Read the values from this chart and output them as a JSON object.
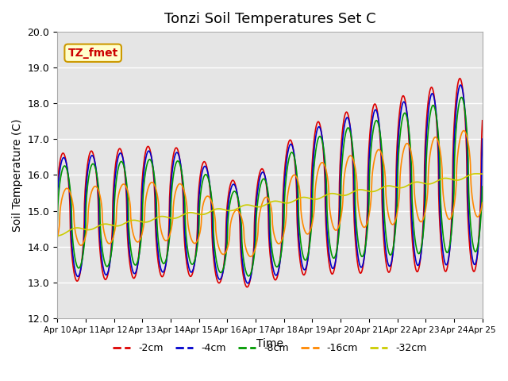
{
  "title": "Tonzi Soil Temperatures Set C",
  "xlabel": "Time",
  "ylabel": "Soil Temperature (C)",
  "ylim": [
    12.0,
    20.0
  ],
  "yticks": [
    12.0,
    13.0,
    14.0,
    15.0,
    16.0,
    17.0,
    18.0,
    19.0,
    20.0
  ],
  "xtick_labels": [
    "Apr 10",
    "Apr 11",
    "Apr 12",
    "Apr 13",
    "Apr 14",
    "Apr 15",
    "Apr 16",
    "Apr 17",
    "Apr 18",
    "Apr 19",
    "Apr 20",
    "Apr 21",
    "Apr 22",
    "Apr 23",
    "Apr 24",
    "Apr 25"
  ],
  "legend_labels": [
    "-2cm",
    "-4cm",
    "-8cm",
    "-16cm",
    "-32cm"
  ],
  "colors": [
    "#dd0000",
    "#0000cc",
    "#009900",
    "#ff8800",
    "#cccc00"
  ],
  "annotation_text": "TZ_fmet",
  "annotation_color": "#cc0000",
  "annotation_bg": "#ffffcc",
  "annotation_border": "#cc9900",
  "plot_bg_color": "#e5e5e5",
  "days": 15,
  "n_points": 1500
}
